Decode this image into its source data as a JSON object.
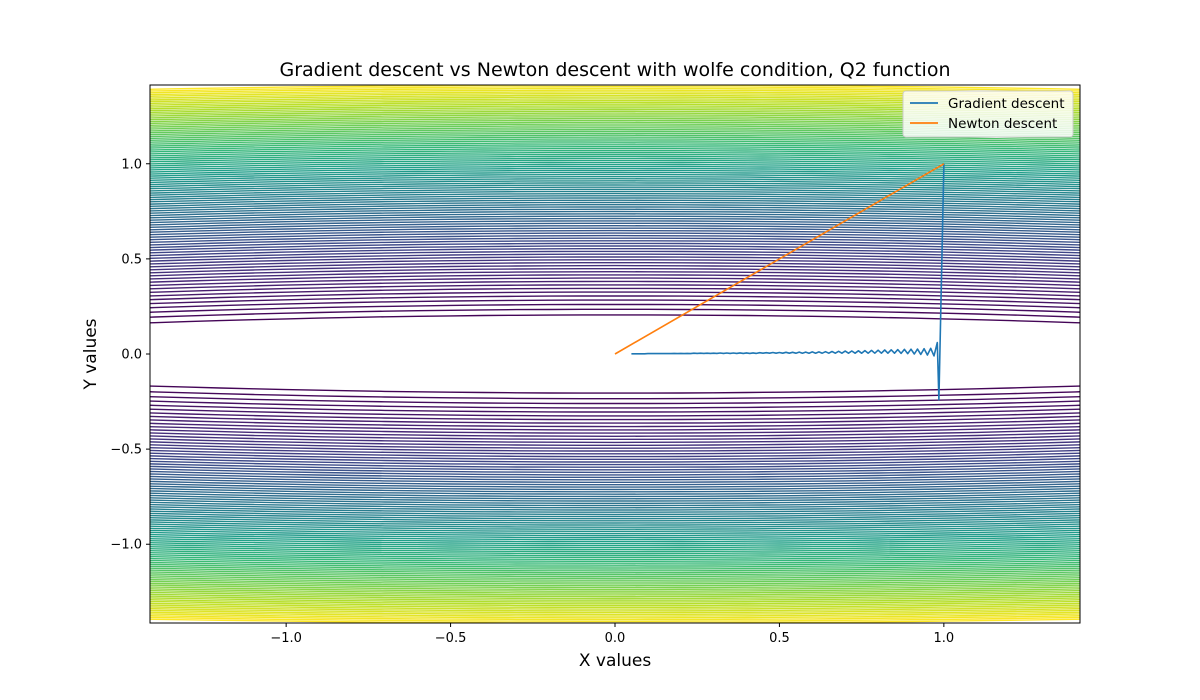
{
  "chart_data": {
    "type": "line",
    "title": "Gradient descent vs Newton descent with wolfe condition, Q2 function",
    "xlabel": "X values",
    "ylabel": "Y values",
    "xlim": [
      -1.414,
      1.414
    ],
    "ylim": [
      -1.414,
      1.414
    ],
    "xticks": [
      {
        "value": -1.0,
        "label": "−1.0"
      },
      {
        "value": -0.5,
        "label": "−0.5"
      },
      {
        "value": 0.0,
        "label": "0.0"
      },
      {
        "value": 0.5,
        "label": "0.5"
      },
      {
        "value": 1.0,
        "label": "1.0"
      }
    ],
    "yticks": [
      {
        "value": -1.0,
        "label": "−1.0"
      },
      {
        "value": -0.5,
        "label": "−0.5"
      },
      {
        "value": 0.0,
        "label": "0.0"
      },
      {
        "value": 0.5,
        "label": "0.5"
      },
      {
        "value": 1.0,
        "label": "1.0"
      }
    ],
    "background": "contour plot, viridis colormap",
    "legend_position": "top-right",
    "series": [
      {
        "name": "Gradient descent",
        "color": "#1f77b4",
        "x": [
          1.0,
          0.985,
          0.98,
          0.97,
          0.96,
          0.95,
          0.94,
          0.93,
          0.92,
          0.91,
          0.9,
          0.89,
          0.88,
          0.87,
          0.86,
          0.85,
          0.84,
          0.83,
          0.82,
          0.81,
          0.8,
          0.79,
          0.78,
          0.77,
          0.76,
          0.75,
          0.74,
          0.73,
          0.72,
          0.71,
          0.7,
          0.69,
          0.68,
          0.67,
          0.66,
          0.65,
          0.64,
          0.63,
          0.62,
          0.61,
          0.6,
          0.59,
          0.58,
          0.57,
          0.56,
          0.55,
          0.54,
          0.53,
          0.52,
          0.51,
          0.5,
          0.49,
          0.48,
          0.47,
          0.46,
          0.45,
          0.44,
          0.43,
          0.42,
          0.41,
          0.4,
          0.39,
          0.38,
          0.37,
          0.36,
          0.35,
          0.34,
          0.33,
          0.32,
          0.31,
          0.3,
          0.29,
          0.28,
          0.27,
          0.26,
          0.25,
          0.24,
          0.23,
          0.22,
          0.21,
          0.2,
          0.19,
          0.18,
          0.17,
          0.16,
          0.15,
          0.14,
          0.13,
          0.12,
          0.11,
          0.1,
          0.09,
          0.08,
          0.07,
          0.06,
          0.05
        ],
        "y": [
          1.0,
          -0.24,
          0.06,
          -0.01,
          0.03,
          -0.005,
          0.028,
          -0.002,
          0.026,
          0.0,
          0.025,
          0.002,
          0.024,
          0.003,
          0.023,
          0.004,
          0.022,
          0.004,
          0.021,
          0.004,
          0.02,
          0.004,
          0.019,
          0.004,
          0.018,
          0.004,
          0.017,
          0.004,
          0.016,
          0.004,
          0.015,
          0.004,
          0.014,
          0.004,
          0.013,
          0.004,
          0.012,
          0.004,
          0.011,
          0.004,
          0.011,
          0.004,
          0.01,
          0.004,
          0.01,
          0.004,
          0.009,
          0.004,
          0.009,
          0.004,
          0.008,
          0.004,
          0.008,
          0.004,
          0.007,
          0.004,
          0.007,
          0.003,
          0.006,
          0.003,
          0.006,
          0.003,
          0.006,
          0.003,
          0.005,
          0.003,
          0.005,
          0.003,
          0.005,
          0.003,
          0.004,
          0.003,
          0.004,
          0.003,
          0.004,
          0.003,
          0.004,
          0.002,
          0.003,
          0.002,
          0.003,
          0.002,
          0.003,
          0.002,
          0.002,
          0.002,
          0.002,
          0.002,
          0.002,
          0.002,
          0.002,
          0.001,
          0.001,
          0.001,
          0.001,
          0.001
        ]
      },
      {
        "name": "Newton descent",
        "color": "#ff7f0e",
        "x": [
          1.0,
          0.0
        ],
        "y": [
          1.0,
          0.0
        ]
      }
    ]
  }
}
